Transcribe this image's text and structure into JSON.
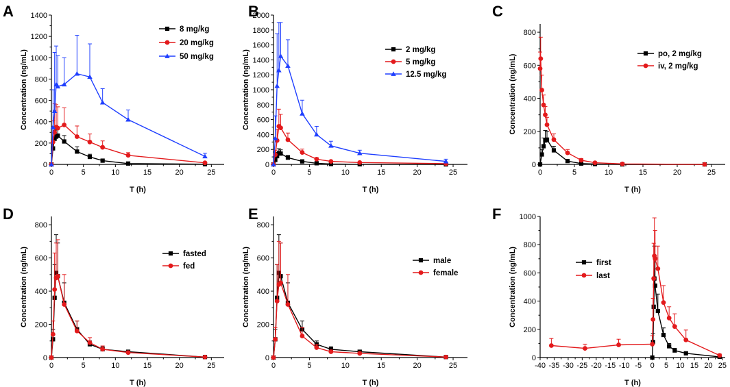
{
  "chart_data": [
    {
      "panel": "A",
      "type": "line",
      "xlabel": "T (h)",
      "ylabel": "Concentration (ng/mL)",
      "xlim": [
        0,
        27
      ],
      "ylim": [
        0,
        1400
      ],
      "xticks": [
        0,
        5,
        10,
        15,
        20,
        25
      ],
      "yticks": [
        0,
        200,
        400,
        600,
        800,
        1000,
        1200,
        1400
      ],
      "legend_position": "top-right",
      "series": [
        {
          "name": "8 mg/kg",
          "color": "#000000",
          "marker": "square",
          "x": [
            0,
            0.25,
            0.5,
            0.75,
            1,
            2,
            4,
            6,
            8,
            12,
            24
          ],
          "y": [
            0,
            150,
            240,
            260,
            270,
            215,
            120,
            70,
            35,
            8,
            2
          ],
          "err": [
            0,
            60,
            80,
            70,
            70,
            55,
            45,
            25,
            15,
            5,
            2
          ]
        },
        {
          "name": "20 mg/kg",
          "color": "#e31a1c",
          "marker": "circle",
          "x": [
            0,
            0.25,
            0.5,
            0.75,
            1,
            2,
            4,
            6,
            8,
            12,
            24
          ],
          "y": [
            0,
            210,
            300,
            350,
            340,
            370,
            260,
            210,
            160,
            85,
            15
          ],
          "err": [
            0,
            200,
            270,
            210,
            200,
            160,
            100,
            75,
            60,
            25,
            8
          ]
        },
        {
          "name": "50 mg/kg",
          "color": "#1f3fff",
          "marker": "triangle",
          "x": [
            0,
            0.25,
            0.5,
            0.75,
            1,
            2,
            4,
            6,
            8,
            12,
            24
          ],
          "y": [
            0,
            350,
            500,
            750,
            730,
            750,
            850,
            820,
            580,
            420,
            75
          ],
          "err": [
            0,
            350,
            550,
            360,
            290,
            250,
            360,
            310,
            130,
            90,
            30
          ]
        }
      ]
    },
    {
      "panel": "B",
      "type": "line",
      "xlabel": "T (h)",
      "ylabel": "Concentration (ng/mL)",
      "xlim": [
        0,
        27
      ],
      "ylim": [
        0,
        2000
      ],
      "xticks": [
        0,
        5,
        10,
        15,
        20,
        25
      ],
      "yticks": [
        0,
        200,
        400,
        600,
        800,
        1000,
        1200,
        1400,
        1600,
        1800,
        2000
      ],
      "legend_position": "top-right",
      "series": [
        {
          "name": "2 mg/kg",
          "color": "#000000",
          "marker": "square",
          "x": [
            0,
            0.25,
            0.5,
            0.75,
            1,
            2,
            4,
            6,
            8,
            12,
            24
          ],
          "y": [
            0,
            60,
            110,
            150,
            145,
            90,
            40,
            15,
            5,
            2,
            0
          ],
          "err": [
            0,
            30,
            50,
            60,
            50,
            30,
            15,
            8,
            3,
            1,
            0
          ]
        },
        {
          "name": "5 mg/kg",
          "color": "#e31a1c",
          "marker": "circle",
          "x": [
            0,
            0.25,
            0.5,
            0.75,
            1,
            2,
            4,
            6,
            8,
            12,
            24
          ],
          "y": [
            0,
            130,
            320,
            510,
            490,
            330,
            160,
            70,
            40,
            25,
            10
          ],
          "err": [
            0,
            60,
            150,
            230,
            180,
            90,
            45,
            20,
            10,
            8,
            5
          ]
        },
        {
          "name": "12.5 mg/kg",
          "color": "#1f3fff",
          "marker": "triangle",
          "x": [
            0,
            0.25,
            0.5,
            0.75,
            1,
            2,
            4,
            6,
            8,
            12,
            24
          ],
          "y": [
            0,
            350,
            1050,
            1260,
            1450,
            1320,
            680,
            400,
            250,
            150,
            40
          ],
          "err": [
            0,
            300,
            700,
            640,
            450,
            350,
            180,
            110,
            60,
            40,
            30
          ]
        }
      ]
    },
    {
      "panel": "C",
      "type": "line",
      "xlabel": "T (h)",
      "ylabel": "Concentration (ng/mL)",
      "xlim": [
        0,
        27
      ],
      "ylim": [
        0,
        850
      ],
      "xticks": [
        0,
        5,
        10,
        15,
        20,
        25
      ],
      "yticks": [
        0,
        200,
        400,
        600,
        800
      ],
      "legend_position": "top-right",
      "series": [
        {
          "name": "po, 2 mg/kg",
          "color": "#000000",
          "marker": "square",
          "x": [
            0,
            0.25,
            0.5,
            0.75,
            1,
            2,
            4,
            6,
            8,
            12,
            24
          ],
          "y": [
            0,
            60,
            110,
            145,
            150,
            85,
            20,
            5,
            2,
            0,
            0
          ],
          "err": [
            0,
            30,
            50,
            60,
            50,
            25,
            8,
            3,
            1,
            0,
            0
          ]
        },
        {
          "name": "iv, 2 mg/kg",
          "color": "#e31a1c",
          "marker": "circle",
          "x": [
            0,
            0.083,
            0.25,
            0.5,
            0.75,
            1,
            2,
            4,
            6,
            8,
            12,
            24
          ],
          "y": [
            580,
            640,
            450,
            360,
            300,
            240,
            150,
            70,
            25,
            10,
            3,
            0
          ],
          "err": [
            100,
            130,
            90,
            60,
            50,
            45,
            35,
            20,
            10,
            5,
            2,
            0
          ]
        }
      ]
    },
    {
      "panel": "D",
      "type": "line",
      "xlabel": "T (h)",
      "ylabel": "Concentration (ng/mL)",
      "xlim": [
        0,
        27
      ],
      "ylim": [
        0,
        850
      ],
      "xticks": [
        0,
        5,
        10,
        15,
        20,
        25
      ],
      "yticks": [
        0,
        200,
        400,
        600,
        800
      ],
      "legend_position": "right",
      "series": [
        {
          "name": "fasted",
          "color": "#000000",
          "marker": "square",
          "x": [
            0,
            0.25,
            0.5,
            0.75,
            1,
            2,
            4,
            6,
            8,
            12,
            24
          ],
          "y": [
            0,
            110,
            360,
            510,
            490,
            330,
            170,
            80,
            50,
            35,
            3
          ],
          "err": [
            0,
            60,
            200,
            230,
            200,
            120,
            50,
            20,
            15,
            10,
            2
          ]
        },
        {
          "name": "fed",
          "color": "#e31a1c",
          "marker": "circle",
          "x": [
            0,
            0.25,
            0.5,
            0.75,
            1,
            2,
            4,
            6,
            8,
            12,
            24
          ],
          "y": [
            0,
            140,
            410,
            480,
            490,
            320,
            160,
            90,
            50,
            30,
            3
          ],
          "err": [
            0,
            80,
            220,
            210,
            220,
            180,
            60,
            30,
            20,
            10,
            2
          ]
        }
      ]
    },
    {
      "panel": "E",
      "type": "line",
      "xlabel": "T (h)",
      "ylabel": "Concentration (ng/mL)",
      "xlim": [
        0,
        27
      ],
      "ylim": [
        0,
        850
      ],
      "xticks": [
        0,
        5,
        10,
        15,
        20,
        25
      ],
      "yticks": [
        0,
        200,
        400,
        600,
        800
      ],
      "legend_position": "right",
      "series": [
        {
          "name": "male",
          "color": "#000000",
          "marker": "square",
          "x": [
            0,
            0.25,
            0.5,
            0.75,
            1,
            2,
            4,
            6,
            8,
            12,
            24
          ],
          "y": [
            0,
            110,
            360,
            510,
            490,
            330,
            170,
            80,
            50,
            35,
            3
          ],
          "err": [
            0,
            60,
            200,
            230,
            200,
            120,
            50,
            20,
            15,
            10,
            2
          ]
        },
        {
          "name": "female",
          "color": "#e31a1c",
          "marker": "circle",
          "x": [
            0,
            0.25,
            0.5,
            0.75,
            1,
            2,
            4,
            6,
            8,
            12,
            24
          ],
          "y": [
            0,
            110,
            340,
            440,
            450,
            320,
            130,
            60,
            35,
            25,
            3
          ],
          "err": [
            0,
            70,
            220,
            260,
            240,
            180,
            50,
            20,
            10,
            8,
            2
          ]
        }
      ]
    },
    {
      "panel": "F",
      "type": "line",
      "xlabel": "T (h)",
      "ylabel": "Concentration (ng/mL)",
      "xlim": [
        -40,
        26
      ],
      "ylim": [
        0,
        1000
      ],
      "xticks": [
        -40,
        -35,
        -30,
        -25,
        -20,
        -15,
        -10,
        -5,
        0,
        5,
        10,
        15,
        20,
        25
      ],
      "yticks": [
        0,
        200,
        400,
        600,
        800,
        1000
      ],
      "legend_position": "center-left",
      "series": [
        {
          "name": "first",
          "color": "#000000",
          "marker": "square",
          "x": [
            0,
            0.25,
            0.5,
            0.75,
            1,
            2,
            4,
            6,
            8,
            12,
            24
          ],
          "y": [
            0,
            110,
            360,
            560,
            510,
            330,
            160,
            80,
            50,
            30,
            5
          ],
          "err": [
            0,
            60,
            200,
            230,
            200,
            120,
            50,
            20,
            15,
            10,
            3
          ]
        },
        {
          "name": "last",
          "color": "#e31a1c",
          "marker": "circle",
          "x": [
            -36,
            -24,
            -12,
            0,
            0.25,
            0.5,
            0.75,
            1,
            2,
            4,
            6,
            8,
            12,
            24
          ],
          "y": [
            85,
            65,
            90,
            95,
            270,
            560,
            720,
            700,
            630,
            390,
            280,
            220,
            125,
            15
          ],
          "err": [
            50,
            30,
            40,
            60,
            150,
            250,
            270,
            200,
            160,
            120,
            80,
            90,
            70,
            10
          ]
        }
      ]
    }
  ]
}
